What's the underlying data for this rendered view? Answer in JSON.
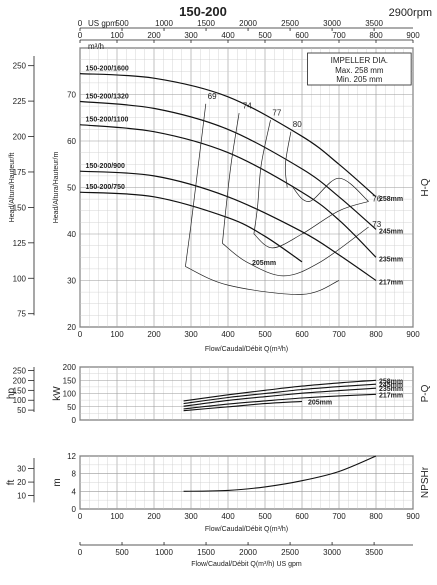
{
  "header": {
    "title": "150-200",
    "rpm": "2900rpm"
  },
  "chart_data": [
    {
      "type": "line",
      "name": "H-Q",
      "side_label": "H-Q",
      "ylabel_ft": "Head/Altura/Hauteur/ft",
      "ylabel_m": "Head/Altura/Hauteur/m",
      "xlabel": "Flow/Caudal/Débit Q(m³/h)",
      "top_unit_gpm": "US gpm",
      "top_unit_m3h": "m³/h",
      "xlim": [
        0,
        900
      ],
      "ylim": [
        20,
        80
      ],
      "x_ticks": [
        0,
        100,
        200,
        300,
        400,
        500,
        600,
        700,
        800,
        900
      ],
      "y_ticks_m": [
        20,
        30,
        40,
        50,
        60,
        70
      ],
      "y_ticks_ft": [
        75,
        100,
        125,
        150,
        175,
        200,
        225,
        250
      ],
      "gpm_ticks": [
        0,
        500,
        1000,
        1500,
        2000,
        2500,
        3000,
        3500
      ],
      "grid": true,
      "impeller_box": {
        "title": "IMPELLER DIA.",
        "max": "Max. 258 mm",
        "min": "Min. 205 mm"
      },
      "series": [
        {
          "name": "258mm",
          "model": "150-200/1600",
          "x": [
            0,
            200,
            400,
            600,
            700,
            800
          ],
          "y": [
            74.5,
            73.5,
            69.5,
            61,
            55,
            48
          ]
        },
        {
          "name": "245mm",
          "model": "150-200/1320",
          "x": [
            0,
            200,
            400,
            600,
            700,
            800
          ],
          "y": [
            68.5,
            67,
            62.5,
            54,
            48,
            41
          ]
        },
        {
          "name": "235mm",
          "model": "150-200/1100",
          "x": [
            0,
            200,
            400,
            600,
            700,
            800
          ],
          "y": [
            63.5,
            62,
            57.5,
            49,
            43,
            35
          ]
        },
        {
          "name": "217mm",
          "model": "150-200/900",
          "x": [
            0,
            200,
            400,
            600,
            700,
            800
          ],
          "y": [
            53.5,
            52.5,
            48,
            40.5,
            35.5,
            30
          ]
        },
        {
          "name": "205mm",
          "model": "150-200/750",
          "x": [
            0,
            200,
            400,
            500,
            600
          ],
          "y": [
            49,
            48,
            43.5,
            39.5,
            34
          ]
        }
      ],
      "efficiency_labels": [
        "69",
        "74",
        "77",
        "80",
        "76",
        "73"
      ]
    },
    {
      "type": "line",
      "name": "P-Q",
      "side_label": "P-Q",
      "ylabel_hp": "hp",
      "ylabel_kw": "kW",
      "xlim": [
        0,
        900
      ],
      "ylim": [
        0,
        200
      ],
      "y_ticks_kw": [
        0,
        50,
        100,
        150,
        200
      ],
      "y_ticks_hp": [
        50,
        100,
        150,
        200,
        250
      ],
      "series": [
        {
          "name": "258mm",
          "x": [
            280,
            400,
            500,
            600,
            700,
            800
          ],
          "y": [
            72,
            95,
            112,
            128,
            140,
            150
          ]
        },
        {
          "name": "245mm",
          "x": [
            280,
            400,
            500,
            600,
            700,
            800
          ],
          "y": [
            62,
            85,
            100,
            115,
            126,
            135
          ]
        },
        {
          "name": "235mm",
          "x": [
            280,
            400,
            500,
            600,
            700,
            800
          ],
          "y": [
            52,
            74,
            88,
            101,
            111,
            120
          ]
        },
        {
          "name": "217mm",
          "x": [
            280,
            400,
            500,
            600,
            700,
            800
          ],
          "y": [
            42,
            60,
            72,
            83,
            91,
            97
          ]
        },
        {
          "name": "205mm",
          "x": [
            280,
            400,
            500,
            600
          ],
          "y": [
            35,
            50,
            62,
            70
          ]
        }
      ]
    },
    {
      "type": "line",
      "name": "NPSHr",
      "side_label": "NPSHr",
      "ylabel_ft": "ft",
      "ylabel_m": "m",
      "xlabel": "Flow/Caudal/Débit Q(m³/h)",
      "bottom_unit_gpm": "US gpm",
      "xlim": [
        0,
        900
      ],
      "ylim": [
        0,
        12
      ],
      "y_ticks_m": [
        0,
        4,
        8,
        12
      ],
      "y_ticks_ft": [
        10,
        20,
        30
      ],
      "series": [
        {
          "name": "NPSHr",
          "x": [
            280,
            400,
            500,
            600,
            700,
            800
          ],
          "y": [
            4,
            4.2,
            5,
            6.4,
            8.5,
            12
          ]
        }
      ]
    }
  ]
}
